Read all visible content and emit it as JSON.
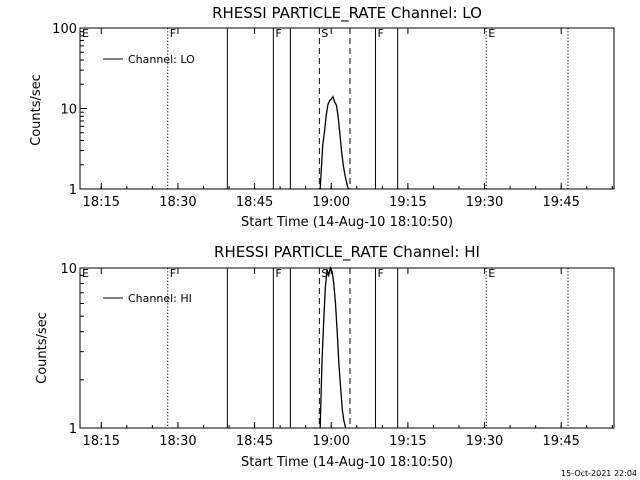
{
  "chart_data": [
    {
      "type": "line",
      "title": "RHESSI PARTICLE_RATE Channel: LO",
      "xlabel": "Start Time (14-Aug-10 18:10:50)",
      "ylabel": "Counts/sec",
      "yscale": "log",
      "ylim": [
        1,
        100
      ],
      "xlim": [
        "18:10:50",
        "19:55:20"
      ],
      "x_ticks": [
        "18:15",
        "18:30",
        "18:45",
        "19:00",
        "19:15",
        "19:30",
        "19:45"
      ],
      "y_ticks": [
        "1",
        "10",
        "100"
      ],
      "legend": "Channel: LO",
      "legend_position": "top-left",
      "series": [
        {
          "name": "Channel: LO",
          "x": [
            "18:57:50",
            "18:58:20",
            "18:58:40",
            "18:59:00",
            "18:59:20",
            "18:59:40",
            "19:00:00",
            "19:00:20",
            "19:00:40",
            "19:01:00",
            "19:01:20",
            "19:01:40",
            "19:02:00",
            "19:02:20",
            "19:02:40",
            "19:03:00",
            "19:03:20"
          ],
          "y": [
            1.0,
            3.5,
            5.0,
            8.0,
            11.0,
            12.5,
            13.0,
            14.0,
            12.0,
            11.0,
            8.0,
            5.0,
            3.0,
            2.0,
            1.5,
            1.2,
            1.0
          ]
        }
      ],
      "markers": [
        {
          "label": "E",
          "time": "18:10:50",
          "style": "dotted"
        },
        {
          "label": "F",
          "time": "18:28:00",
          "style": "dotted"
        },
        {
          "label": "",
          "time": "18:39:40",
          "style": "solid"
        },
        {
          "label": "F",
          "time": "18:48:40",
          "style": "solid"
        },
        {
          "label": "",
          "time": "18:52:00",
          "style": "solid"
        },
        {
          "label": "S",
          "time": "18:57:40",
          "style": "dashed"
        },
        {
          "label": "",
          "time": "19:03:40",
          "style": "dashed"
        },
        {
          "label": "F",
          "time": "19:08:40",
          "style": "solid"
        },
        {
          "label": "",
          "time": "19:13:00",
          "style": "solid"
        },
        {
          "label": "E",
          "time": "19:30:20",
          "style": "dotted"
        },
        {
          "label": "",
          "time": "19:46:20",
          "style": "dotted"
        }
      ]
    },
    {
      "type": "line",
      "title": "RHESSI PARTICLE_RATE Channel: HI",
      "xlabel": "Start Time (14-Aug-10 18:10:50)",
      "ylabel": "Counts/sec",
      "yscale": "log",
      "ylim": [
        1,
        10
      ],
      "xlim": [
        "18:10:50",
        "19:55:20"
      ],
      "x_ticks": [
        "18:15",
        "18:30",
        "18:45",
        "19:00",
        "19:15",
        "19:30",
        "19:45"
      ],
      "y_ticks": [
        "1",
        "10"
      ],
      "legend": "Channel: HI",
      "legend_position": "top-left",
      "series": [
        {
          "name": "Channel: HI",
          "x": [
            "18:57:50",
            "18:58:10",
            "18:58:30",
            "18:58:50",
            "18:59:10",
            "18:59:30",
            "18:59:50",
            "19:00:10",
            "19:00:30",
            "19:00:50",
            "19:01:10",
            "19:01:30",
            "19:01:50",
            "19:02:10",
            "19:02:30",
            "19:02:50"
          ],
          "y": [
            1.0,
            2.5,
            4.5,
            7.5,
            9.8,
            9.0,
            10.0,
            9.5,
            8.0,
            6.0,
            4.0,
            2.5,
            1.8,
            1.3,
            1.1,
            1.0
          ]
        }
      ],
      "markers": [
        {
          "label": "E",
          "time": "18:10:50",
          "style": "dotted"
        },
        {
          "label": "F",
          "time": "18:28:00",
          "style": "dotted"
        },
        {
          "label": "",
          "time": "18:39:40",
          "style": "solid"
        },
        {
          "label": "F",
          "time": "18:48:40",
          "style": "solid"
        },
        {
          "label": "",
          "time": "18:52:00",
          "style": "solid"
        },
        {
          "label": "S",
          "time": "18:57:40",
          "style": "dashed"
        },
        {
          "label": "",
          "time": "19:03:40",
          "style": "dashed"
        },
        {
          "label": "F",
          "time": "19:08:40",
          "style": "solid"
        },
        {
          "label": "",
          "time": "19:13:00",
          "style": "solid"
        },
        {
          "label": "E",
          "time": "19:30:20",
          "style": "dotted"
        },
        {
          "label": "",
          "time": "19:46:20",
          "style": "dotted"
        }
      ]
    }
  ],
  "footer": {
    "timestamp": "15-Oct-2021 22:04"
  }
}
